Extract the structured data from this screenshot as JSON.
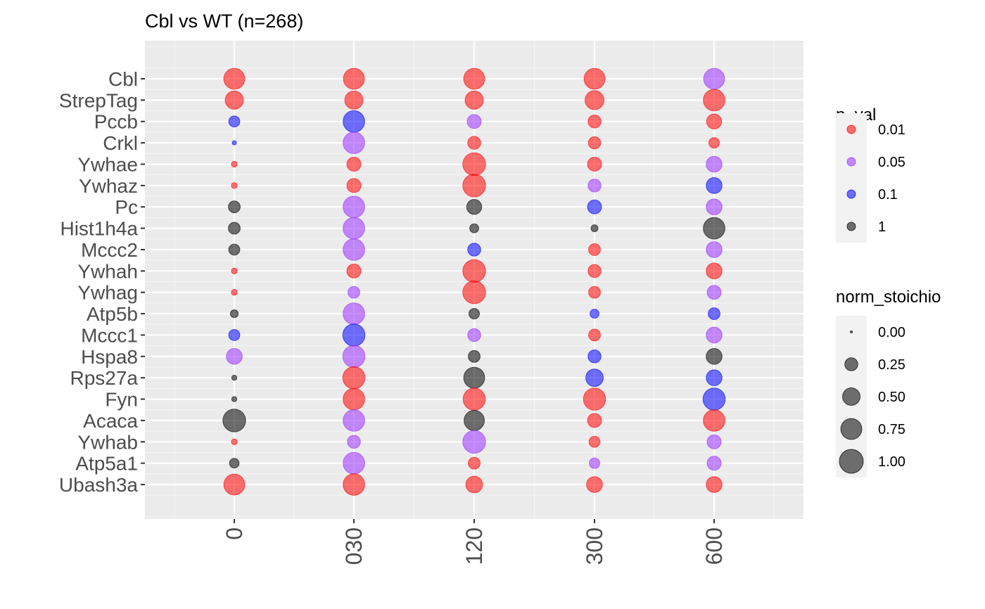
{
  "chart_data": {
    "type": "scatter",
    "title": "Cbl vs WT (n=268)",
    "xlabel": "",
    "ylabel": "",
    "categories": [
      "0",
      "030",
      "120",
      "300",
      "600"
    ],
    "genes": [
      "Cbl",
      "StrepTag",
      "Pccb",
      "Crkl",
      "Ywhae",
      "Ywhaz",
      "Pc",
      "Hist1h4a",
      "Mccc2",
      "Ywhah",
      "Ywhag",
      "Atp5b",
      "Mccc1",
      "Hspa8",
      "Rps27a",
      "Fyn",
      "Acaca",
      "Ywhab",
      "Atp5a1",
      "Ubash3a"
    ],
    "p_val_levels": [
      "0.01",
      "0.05",
      "0.1",
      "1"
    ],
    "p_val_colors": {
      "0.01": "#ff0000",
      "0.05": "#9b30ff",
      "0.1": "#0000ff",
      "1": "#000000"
    },
    "size_legend_title": "norm_stoichio",
    "color_legend_title": "p_val",
    "size_legend_values": [
      "0.00",
      "0.25",
      "0.50",
      "0.75",
      "1.00"
    ],
    "legend_position": "right",
    "grid": true,
    "points": [
      {
        "gene": "Cbl",
        "time": "0",
        "norm_stoichio": 0.75,
        "p_val": "0.01"
      },
      {
        "gene": "Cbl",
        "time": "030",
        "norm_stoichio": 0.75,
        "p_val": "0.01"
      },
      {
        "gene": "Cbl",
        "time": "120",
        "norm_stoichio": 0.75,
        "p_val": "0.01"
      },
      {
        "gene": "Cbl",
        "time": "300",
        "norm_stoichio": 0.75,
        "p_val": "0.01"
      },
      {
        "gene": "Cbl",
        "time": "600",
        "norm_stoichio": 0.75,
        "p_val": "0.05"
      },
      {
        "gene": "StrepTag",
        "time": "0",
        "norm_stoichio": 0.55,
        "p_val": "0.01"
      },
      {
        "gene": "StrepTag",
        "time": "030",
        "norm_stoichio": 0.55,
        "p_val": "0.01"
      },
      {
        "gene": "StrepTag",
        "time": "120",
        "norm_stoichio": 0.55,
        "p_val": "0.01"
      },
      {
        "gene": "StrepTag",
        "time": "300",
        "norm_stoichio": 0.6,
        "p_val": "0.01"
      },
      {
        "gene": "StrepTag",
        "time": "600",
        "norm_stoichio": 0.8,
        "p_val": "0.01"
      },
      {
        "gene": "Pccb",
        "time": "0",
        "norm_stoichio": 0.17,
        "p_val": "0.1"
      },
      {
        "gene": "Pccb",
        "time": "030",
        "norm_stoichio": 0.8,
        "p_val": "0.1"
      },
      {
        "gene": "Pccb",
        "time": "120",
        "norm_stoichio": 0.3,
        "p_val": "0.05"
      },
      {
        "gene": "Pccb",
        "time": "300",
        "norm_stoichio": 0.25,
        "p_val": "0.01"
      },
      {
        "gene": "Pccb",
        "time": "600",
        "norm_stoichio": 0.35,
        "p_val": "0.01"
      },
      {
        "gene": "Crkl",
        "time": "0",
        "norm_stoichio": 0.01,
        "p_val": "0.1"
      },
      {
        "gene": "Crkl",
        "time": "030",
        "norm_stoichio": 0.8,
        "p_val": "0.05"
      },
      {
        "gene": "Crkl",
        "time": "120",
        "norm_stoichio": 0.25,
        "p_val": "0.01"
      },
      {
        "gene": "Crkl",
        "time": "300",
        "norm_stoichio": 0.22,
        "p_val": "0.01"
      },
      {
        "gene": "Crkl",
        "time": "600",
        "norm_stoichio": 0.15,
        "p_val": "0.01"
      },
      {
        "gene": "Ywhae",
        "time": "0",
        "norm_stoichio": 0.03,
        "p_val": "0.01"
      },
      {
        "gene": "Ywhae",
        "time": "030",
        "norm_stoichio": 0.3,
        "p_val": "0.01"
      },
      {
        "gene": "Ywhae",
        "time": "120",
        "norm_stoichio": 0.9,
        "p_val": "0.01"
      },
      {
        "gene": "Ywhae",
        "time": "300",
        "norm_stoichio": 0.3,
        "p_val": "0.01"
      },
      {
        "gene": "Ywhae",
        "time": "600",
        "norm_stoichio": 0.4,
        "p_val": "0.05"
      },
      {
        "gene": "Ywhaz",
        "time": "0",
        "norm_stoichio": 0.03,
        "p_val": "0.01"
      },
      {
        "gene": "Ywhaz",
        "time": "030",
        "norm_stoichio": 0.3,
        "p_val": "0.01"
      },
      {
        "gene": "Ywhaz",
        "time": "120",
        "norm_stoichio": 0.9,
        "p_val": "0.01"
      },
      {
        "gene": "Ywhaz",
        "time": "300",
        "norm_stoichio": 0.25,
        "p_val": "0.05"
      },
      {
        "gene": "Ywhaz",
        "time": "600",
        "norm_stoichio": 0.4,
        "p_val": "0.1"
      },
      {
        "gene": "Pc",
        "time": "0",
        "norm_stoichio": 0.2,
        "p_val": "1"
      },
      {
        "gene": "Pc",
        "time": "030",
        "norm_stoichio": 0.8,
        "p_val": "0.05"
      },
      {
        "gene": "Pc",
        "time": "120",
        "norm_stoichio": 0.35,
        "p_val": "1"
      },
      {
        "gene": "Pc",
        "time": "300",
        "norm_stoichio": 0.3,
        "p_val": "0.1"
      },
      {
        "gene": "Pc",
        "time": "600",
        "norm_stoichio": 0.4,
        "p_val": "0.05"
      },
      {
        "gene": "Hist1h4a",
        "time": "0",
        "norm_stoichio": 0.2,
        "p_val": "1"
      },
      {
        "gene": "Hist1h4a",
        "time": "030",
        "norm_stoichio": 0.8,
        "p_val": "0.05"
      },
      {
        "gene": "Hist1h4a",
        "time": "120",
        "norm_stoichio": 0.1,
        "p_val": "1"
      },
      {
        "gene": "Hist1h4a",
        "time": "300",
        "norm_stoichio": 0.05,
        "p_val": "1"
      },
      {
        "gene": "Hist1h4a",
        "time": "600",
        "norm_stoichio": 0.8,
        "p_val": "1"
      },
      {
        "gene": "Mccc2",
        "time": "0",
        "norm_stoichio": 0.17,
        "p_val": "1"
      },
      {
        "gene": "Mccc2",
        "time": "030",
        "norm_stoichio": 0.8,
        "p_val": "0.05"
      },
      {
        "gene": "Mccc2",
        "time": "120",
        "norm_stoichio": 0.25,
        "p_val": "0.1"
      },
      {
        "gene": "Mccc2",
        "time": "300",
        "norm_stoichio": 0.2,
        "p_val": "0.01"
      },
      {
        "gene": "Mccc2",
        "time": "600",
        "norm_stoichio": 0.4,
        "p_val": "0.05"
      },
      {
        "gene": "Ywhah",
        "time": "0",
        "norm_stoichio": 0.03,
        "p_val": "0.01"
      },
      {
        "gene": "Ywhah",
        "time": "030",
        "norm_stoichio": 0.3,
        "p_val": "0.01"
      },
      {
        "gene": "Ywhah",
        "time": "120",
        "norm_stoichio": 0.9,
        "p_val": "0.01"
      },
      {
        "gene": "Ywhah",
        "time": "300",
        "norm_stoichio": 0.25,
        "p_val": "0.01"
      },
      {
        "gene": "Ywhah",
        "time": "600",
        "norm_stoichio": 0.4,
        "p_val": "0.01"
      },
      {
        "gene": "Ywhag",
        "time": "0",
        "norm_stoichio": 0.03,
        "p_val": "0.01"
      },
      {
        "gene": "Ywhag",
        "time": "030",
        "norm_stoichio": 0.2,
        "p_val": "0.05"
      },
      {
        "gene": "Ywhag",
        "time": "120",
        "norm_stoichio": 0.9,
        "p_val": "0.01"
      },
      {
        "gene": "Ywhag",
        "time": "300",
        "norm_stoichio": 0.2,
        "p_val": "0.01"
      },
      {
        "gene": "Ywhag",
        "time": "600",
        "norm_stoichio": 0.3,
        "p_val": "0.05"
      },
      {
        "gene": "Atp5b",
        "time": "0",
        "norm_stoichio": 0.07,
        "p_val": "1"
      },
      {
        "gene": "Atp5b",
        "time": "030",
        "norm_stoichio": 0.8,
        "p_val": "0.05"
      },
      {
        "gene": "Atp5b",
        "time": "120",
        "norm_stoichio": 0.15,
        "p_val": "1"
      },
      {
        "gene": "Atp5b",
        "time": "300",
        "norm_stoichio": 0.1,
        "p_val": "0.1"
      },
      {
        "gene": "Atp5b",
        "time": "600",
        "norm_stoichio": 0.2,
        "p_val": "0.1"
      },
      {
        "gene": "Mccc1",
        "time": "0",
        "norm_stoichio": 0.17,
        "p_val": "0.1"
      },
      {
        "gene": "Mccc1",
        "time": "030",
        "norm_stoichio": 0.85,
        "p_val": "0.1"
      },
      {
        "gene": "Mccc1",
        "time": "120",
        "norm_stoichio": 0.25,
        "p_val": "0.05"
      },
      {
        "gene": "Mccc1",
        "time": "300",
        "norm_stoichio": 0.2,
        "p_val": "0.01"
      },
      {
        "gene": "Mccc1",
        "time": "600",
        "norm_stoichio": 0.4,
        "p_val": "0.05"
      },
      {
        "gene": "Hspa8",
        "time": "0",
        "norm_stoichio": 0.4,
        "p_val": "0.05"
      },
      {
        "gene": "Hspa8",
        "time": "030",
        "norm_stoichio": 0.85,
        "p_val": "0.05"
      },
      {
        "gene": "Hspa8",
        "time": "120",
        "norm_stoichio": 0.2,
        "p_val": "1"
      },
      {
        "gene": "Hspa8",
        "time": "300",
        "norm_stoichio": 0.25,
        "p_val": "0.1"
      },
      {
        "gene": "Hspa8",
        "time": "600",
        "norm_stoichio": 0.4,
        "p_val": "1"
      },
      {
        "gene": "Rps27a",
        "time": "0",
        "norm_stoichio": 0.02,
        "p_val": "1"
      },
      {
        "gene": "Rps27a",
        "time": "030",
        "norm_stoichio": 0.85,
        "p_val": "0.01"
      },
      {
        "gene": "Rps27a",
        "time": "120",
        "norm_stoichio": 0.75,
        "p_val": "1"
      },
      {
        "gene": "Rps27a",
        "time": "300",
        "norm_stoichio": 0.5,
        "p_val": "0.1"
      },
      {
        "gene": "Rps27a",
        "time": "600",
        "norm_stoichio": 0.4,
        "p_val": "0.1"
      },
      {
        "gene": "Fyn",
        "time": "0",
        "norm_stoichio": 0.02,
        "p_val": "1"
      },
      {
        "gene": "Fyn",
        "time": "030",
        "norm_stoichio": 0.8,
        "p_val": "0.01"
      },
      {
        "gene": "Fyn",
        "time": "120",
        "norm_stoichio": 0.85,
        "p_val": "0.01"
      },
      {
        "gene": "Fyn",
        "time": "300",
        "norm_stoichio": 0.85,
        "p_val": "0.01"
      },
      {
        "gene": "Fyn",
        "time": "600",
        "norm_stoichio": 0.85,
        "p_val": "0.1"
      },
      {
        "gene": "Acaca",
        "time": "0",
        "norm_stoichio": 0.9,
        "p_val": "1"
      },
      {
        "gene": "Acaca",
        "time": "030",
        "norm_stoichio": 0.8,
        "p_val": "0.05"
      },
      {
        "gene": "Acaca",
        "time": "120",
        "norm_stoichio": 0.7,
        "p_val": "1"
      },
      {
        "gene": "Acaca",
        "time": "300",
        "norm_stoichio": 0.3,
        "p_val": "0.01"
      },
      {
        "gene": "Acaca",
        "time": "600",
        "norm_stoichio": 0.8,
        "p_val": "0.01"
      },
      {
        "gene": "Ywhab",
        "time": "0",
        "norm_stoichio": 0.03,
        "p_val": "0.01"
      },
      {
        "gene": "Ywhab",
        "time": "030",
        "norm_stoichio": 0.25,
        "p_val": "0.05"
      },
      {
        "gene": "Ywhab",
        "time": "120",
        "norm_stoichio": 0.9,
        "p_val": "0.05"
      },
      {
        "gene": "Ywhab",
        "time": "300",
        "norm_stoichio": 0.17,
        "p_val": "0.01"
      },
      {
        "gene": "Ywhab",
        "time": "600",
        "norm_stoichio": 0.3,
        "p_val": "0.05"
      },
      {
        "gene": "Atp5a1",
        "time": "0",
        "norm_stoichio": 0.12,
        "p_val": "1"
      },
      {
        "gene": "Atp5a1",
        "time": "030",
        "norm_stoichio": 0.8,
        "p_val": "0.05"
      },
      {
        "gene": "Atp5a1",
        "time": "120",
        "norm_stoichio": 0.2,
        "p_val": "0.01"
      },
      {
        "gene": "Atp5a1",
        "time": "300",
        "norm_stoichio": 0.15,
        "p_val": "0.05"
      },
      {
        "gene": "Atp5a1",
        "time": "600",
        "norm_stoichio": 0.3,
        "p_val": "0.05"
      },
      {
        "gene": "Ubash3a",
        "time": "0",
        "norm_stoichio": 0.75,
        "p_val": "0.01"
      },
      {
        "gene": "Ubash3a",
        "time": "030",
        "norm_stoichio": 0.8,
        "p_val": "0.01"
      },
      {
        "gene": "Ubash3a",
        "time": "120",
        "norm_stoichio": 0.45,
        "p_val": "0.01"
      },
      {
        "gene": "Ubash3a",
        "time": "300",
        "norm_stoichio": 0.4,
        "p_val": "0.01"
      },
      {
        "gene": "Ubash3a",
        "time": "600",
        "norm_stoichio": 0.4,
        "p_val": "0.01"
      }
    ]
  }
}
